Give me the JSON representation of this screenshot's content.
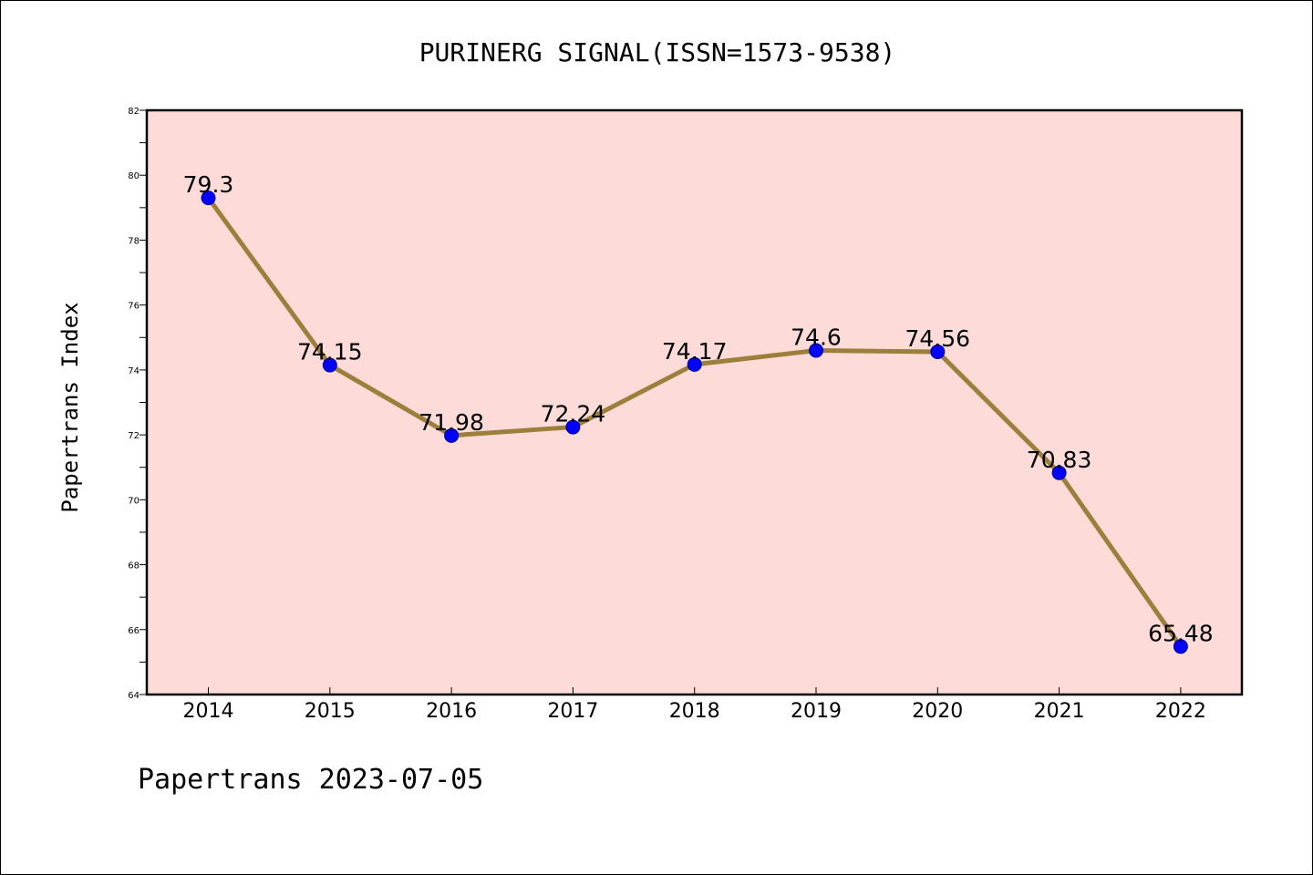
{
  "chart_data": {
    "type": "line",
    "title": "PURINERG SIGNAL(ISSN=1573-9538)",
    "xlabel": "",
    "ylabel": "Papertrans Index",
    "categories": [
      "2014",
      "2015",
      "2016",
      "2017",
      "2018",
      "2019",
      "2020",
      "2021",
      "2022"
    ],
    "series": [
      {
        "values": [
          79.3,
          74.15,
          71.98,
          72.24,
          74.17,
          74.6,
          74.56,
          70.83,
          65.48
        ],
        "data_labels": [
          "79.3",
          "74.15",
          "71.98",
          "72.24",
          "74.17",
          "74.6",
          "74.56",
          "70.83",
          "65.48"
        ]
      }
    ],
    "ylim": [
      64,
      82
    ],
    "yticks": [
      "64",
      "66",
      "68",
      "70",
      "72",
      "74",
      "76",
      "78",
      "80",
      "82"
    ],
    "grid": false,
    "footer": "Papertrans 2023-07-05"
  },
  "colors": {
    "plot_background": "#fddbd9",
    "line": "#9b7f3b",
    "marker": "#0000ff"
  }
}
